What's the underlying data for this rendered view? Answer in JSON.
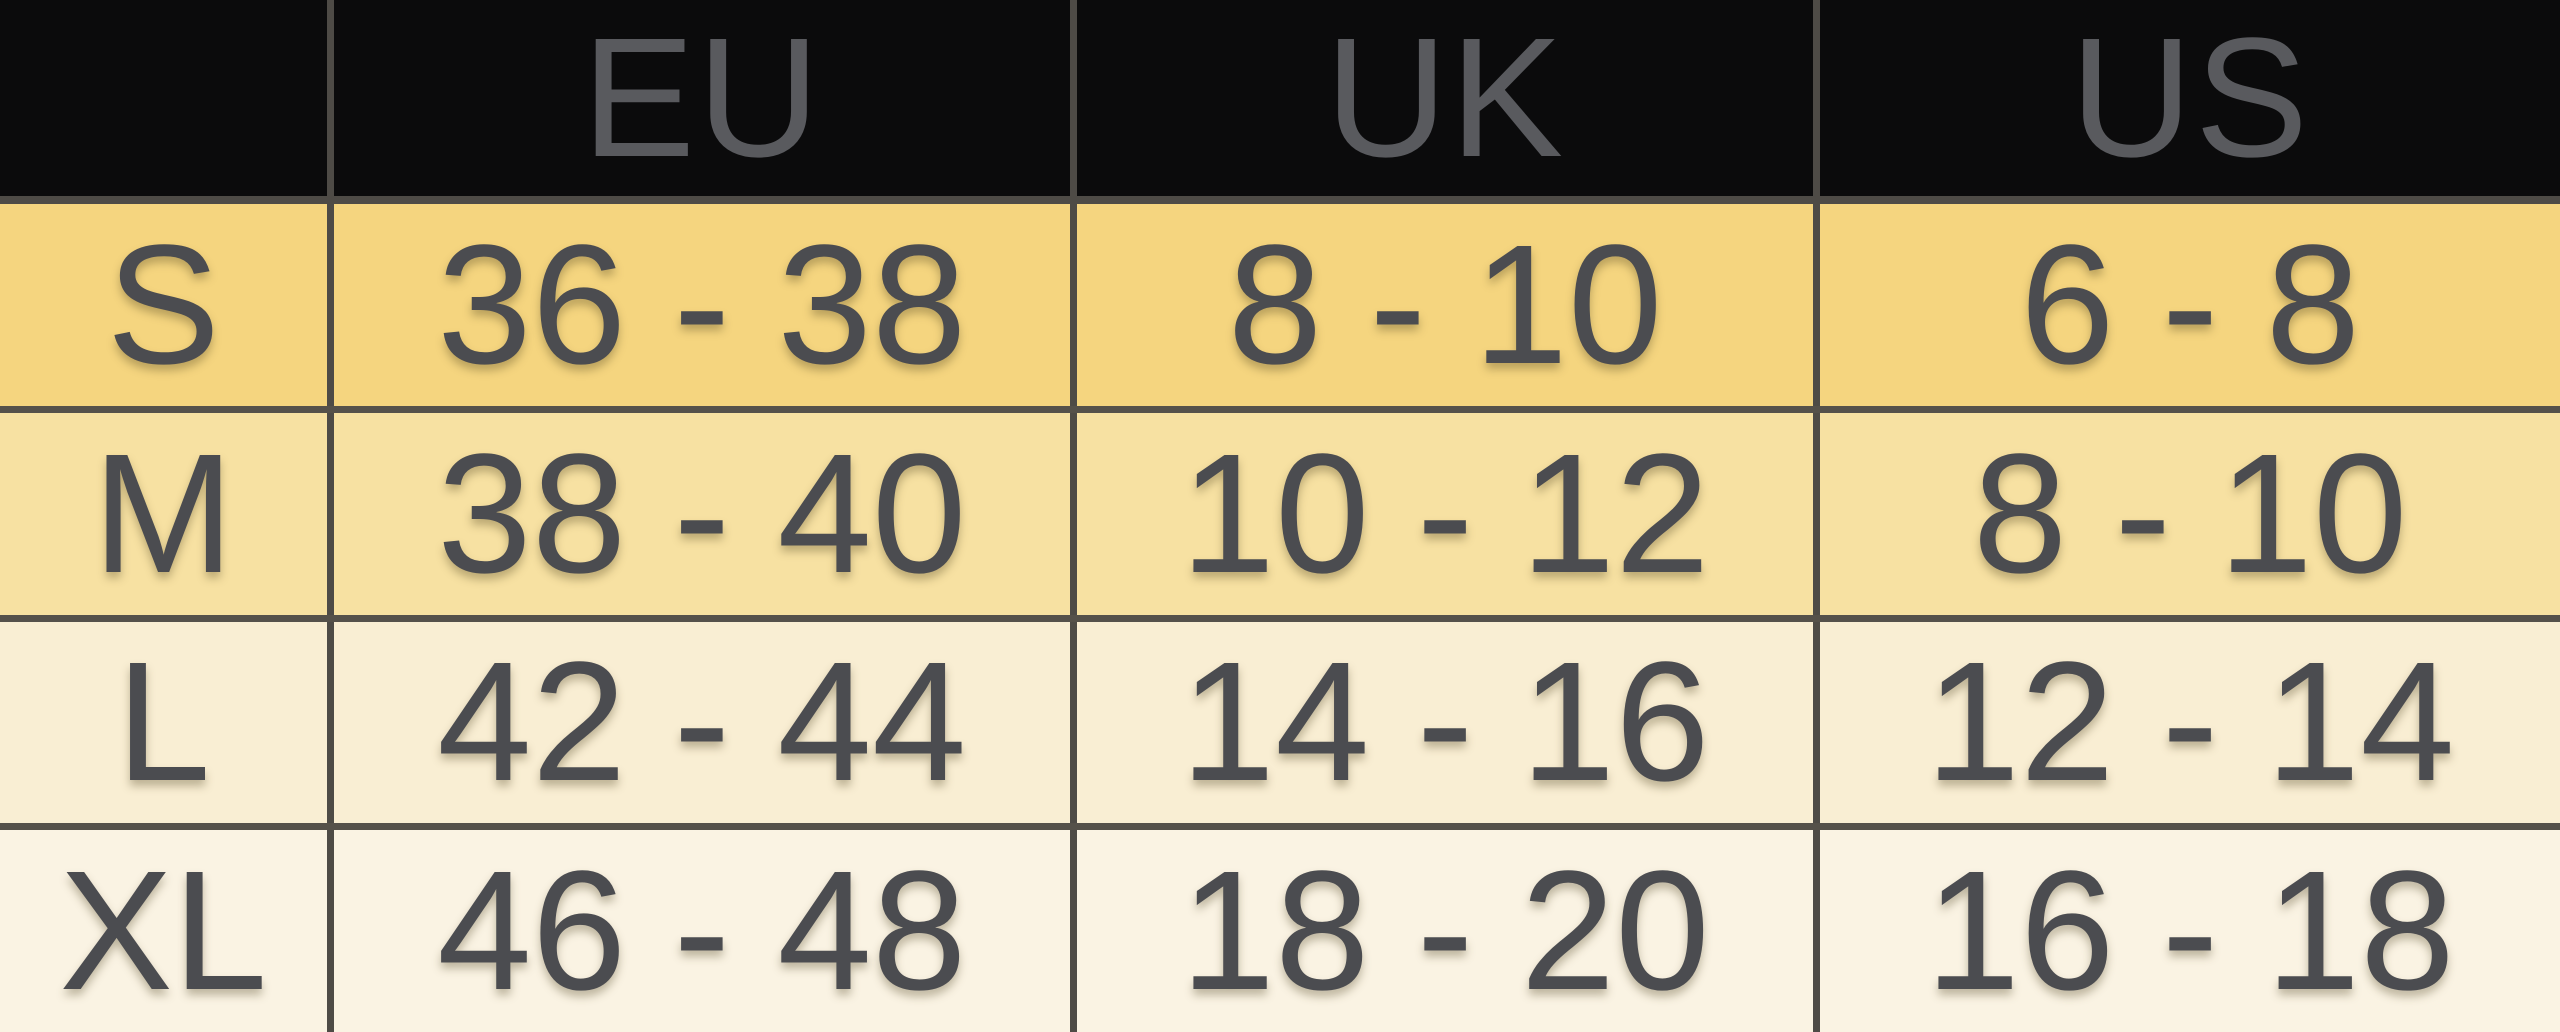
{
  "chart_data": {
    "type": "table",
    "columns": [
      "",
      "EU",
      "UK",
      "US"
    ],
    "rows": [
      [
        "S",
        "36 - 38",
        "8 - 10",
        "6 - 8"
      ],
      [
        "M",
        "38 - 40",
        "10 - 12",
        "8 - 10"
      ],
      [
        "L",
        "42 - 44",
        "14 - 16",
        "12 - 14"
      ],
      [
        "XL",
        "46 - 48",
        "18 - 20",
        "16 - 18"
      ]
    ],
    "layout": {
      "grid": "on",
      "header_position": "top",
      "row_label_position": "left"
    }
  },
  "colors": {
    "header_bg": "#0b0b0c",
    "header_text": "#595a5e",
    "grid_border": "#4e4b46",
    "cell_text": "#4b4c50",
    "row_bg": [
      "#f5d57f",
      "#f7e1a2",
      "#f9eed3",
      "#faf3e3"
    ]
  }
}
